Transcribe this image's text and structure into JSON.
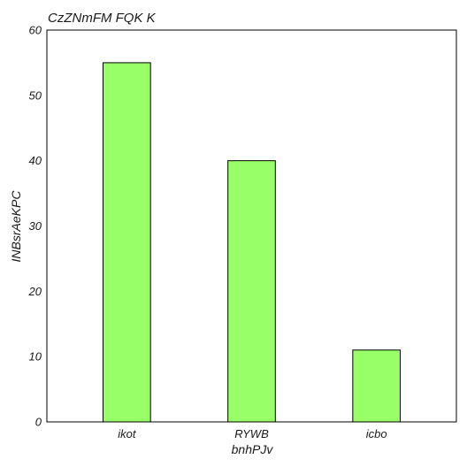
{
  "chart_data": {
    "type": "bar",
    "title": "CzZNmFM FQK K",
    "xlabel": "bnhPJv",
    "ylabel": "INBsrAeKPC",
    "categories": [
      "ikot",
      "RYWB",
      "icbo"
    ],
    "values": [
      55,
      40,
      11
    ],
    "ylim": [
      0,
      60
    ],
    "yticks": [
      0,
      10,
      20,
      30,
      40,
      50,
      60
    ],
    "grid": false,
    "bar_color": "#99ff66",
    "edge_color": "#000000"
  }
}
